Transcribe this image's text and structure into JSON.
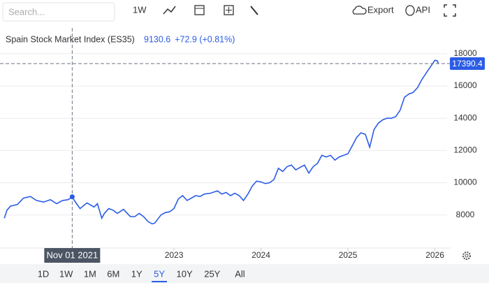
{
  "toolbar": {
    "search_placeholder": "Search...",
    "period": "1W",
    "export": "Export",
    "api": "API"
  },
  "ranges": [
    "1D",
    "1W",
    "1M",
    "6M",
    "1Y",
    "5Y",
    "10Y",
    "25Y",
    "All"
  ],
  "selected_range_index": 5,
  "chart_data": {
    "type": "line",
    "series": [
      {
        "name": "Spain Stock Market Index (ES35)",
        "color": "#2b5ce6",
        "x": [
          2021.05,
          2021.08,
          2021.12,
          2021.2,
          2021.27,
          2021.35,
          2021.42,
          2021.5,
          2021.58,
          2021.65,
          2021.72,
          2021.78,
          2021.83,
          2021.88,
          2021.92,
          2022.0,
          2022.08,
          2022.12,
          2022.17,
          2022.2,
          2022.25,
          2022.3,
          2022.35,
          2022.42,
          2022.48,
          2022.5,
          2022.55,
          2022.6,
          2022.65,
          2022.7,
          2022.75,
          2022.78,
          2022.85,
          2022.9,
          2022.95,
          2023.0,
          2023.05,
          2023.1,
          2023.15,
          2023.2,
          2023.25,
          2023.3,
          2023.35,
          2023.42,
          2023.5,
          2023.55,
          2023.6,
          2023.65,
          2023.7,
          2023.75,
          2023.8,
          2023.85,
          2023.9,
          2023.95,
          2024.0,
          2024.05,
          2024.1,
          2024.15,
          2024.2,
          2024.25,
          2024.3,
          2024.35,
          2024.4,
          2024.45,
          2024.5,
          2024.55,
          2024.6,
          2024.65,
          2024.7,
          2024.75,
          2024.8,
          2024.85,
          2024.9,
          2024.95,
          2025.0,
          2025.05,
          2025.1,
          2025.15,
          2025.2,
          2025.25,
          2025.3,
          2025.35,
          2025.4,
          2025.45,
          2025.5,
          2025.55,
          2025.6,
          2025.65,
          2025.7,
          2025.75,
          2025.8,
          2025.85,
          2025.9,
          2025.95,
          2026.0,
          2026.03,
          2026.04
        ],
        "values": [
          7800,
          8300,
          8550,
          8650,
          9050,
          9150,
          8900,
          8800,
          8950,
          8700,
          8900,
          8950,
          9100,
          8700,
          8400,
          8750,
          8500,
          8700,
          7800,
          8100,
          8400,
          8300,
          8100,
          8350,
          8000,
          7900,
          7900,
          8100,
          7900,
          7600,
          7450,
          7500,
          8000,
          8150,
          8200,
          8400,
          9000,
          9200,
          8900,
          9050,
          9200,
          9150,
          9300,
          9350,
          9500,
          9300,
          9400,
          9200,
          9350,
          9200,
          8900,
          9300,
          9800,
          10100,
          10050,
          9950,
          10000,
          10200,
          10900,
          10700,
          11000,
          11100,
          10800,
          10950,
          11100,
          10600,
          11000,
          11200,
          11700,
          11600,
          11700,
          11400,
          11600,
          11700,
          11800,
          12300,
          12800,
          13100,
          13000,
          12200,
          13300,
          13700,
          13900,
          14000,
          14000,
          14100,
          14500,
          15300,
          15500,
          15600,
          15900,
          16400,
          16800,
          17200,
          17600,
          17550,
          17390.4
        ]
      }
    ],
    "xlim": [
      2021.04,
      2026.14
    ],
    "xticks": [
      2023,
      2024,
      2025,
      2026
    ],
    "ylim": [
      5950,
      19600
    ],
    "yticks": [
      8000,
      10000,
      12000,
      14000,
      16000,
      18000
    ],
    "grid": true,
    "last_value": 17390.4,
    "crosshair": {
      "x": 2021.83,
      "label": "Nov 01 2021",
      "value": 9130.6,
      "change": "+72.9 (+0.81%)"
    }
  }
}
